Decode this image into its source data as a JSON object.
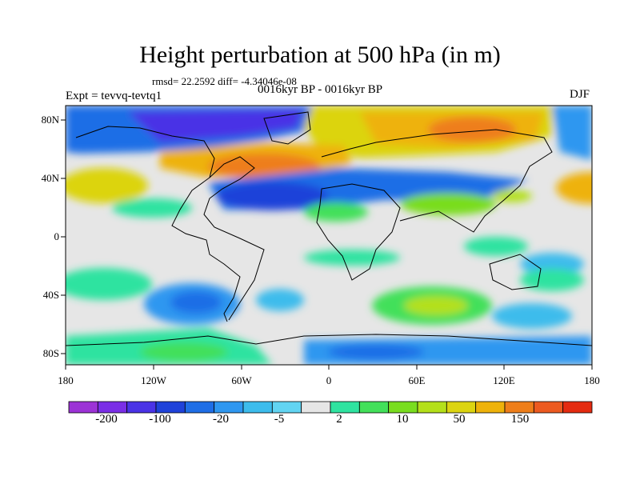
{
  "title": "Height perturbation at 500 hPa (in m)",
  "stats_text": "rmsd= 22.2592  diff= -4.34046e-08",
  "experiment_label": "Expt = tevvq-tevtq1",
  "period_label": "0016kyr BP - 0016kyr BP",
  "season_label": "DJF",
  "map_axes": {
    "x_ticks": [
      "180",
      "120W",
      "60W",
      "0",
      "60E",
      "120E",
      "180"
    ],
    "y_ticks": [
      "80N",
      "40N",
      "0",
      "40S",
      "80S"
    ]
  },
  "colorbar": {
    "colors": [
      "#9c33d6",
      "#7a2ee6",
      "#4a33e6",
      "#1f42d9",
      "#1f6ee6",
      "#2f97f0",
      "#3dbcec",
      "#62d4f2",
      "#e6e6e6",
      "#2fe3a0",
      "#43e05a",
      "#79dd1f",
      "#b4e01a",
      "#dcd410",
      "#eeb20a",
      "#ee7e1a",
      "#ec5a20",
      "#e42b10"
    ],
    "labels": [
      "-200",
      "-100",
      "-20",
      "-5",
      "2",
      "10",
      "50",
      "150"
    ],
    "background_color": "#e6e6e6"
  }
}
